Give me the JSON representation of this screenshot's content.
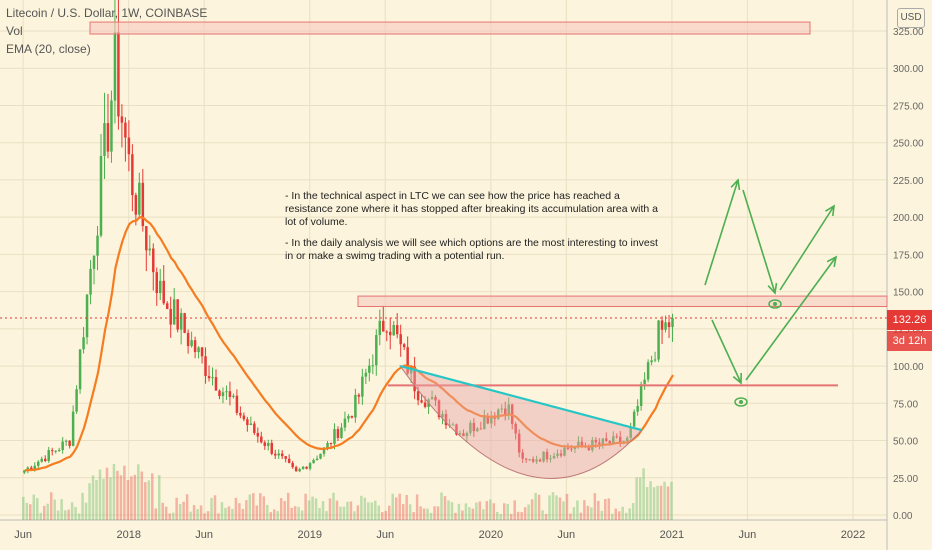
{
  "header": {
    "title": "Litecoin / U.S. Dollar, 1W, COINBASE",
    "indicator_vol": "Vol",
    "indicator_ema": "EMA (20, close)"
  },
  "currency_label": "USD",
  "price_badge": {
    "value": "132.26",
    "countdown": "3d 12h"
  },
  "annotation": {
    "p1": "- In the technical aspect in LTC we can see how the price has reached a resistance zone where it has stopped after breaking its accumulation area with a lot of volume.",
    "p2": "- In the daily analysis we will see which options are the most interesting to invest in or make a swimg trading with a potential run."
  },
  "colors": {
    "background": "#fcf4dc",
    "candle_up": "#4caf50",
    "candle_down": "#e53935",
    "ema": "#f57c20",
    "resistance_zone_fill": "#f6c9bf",
    "resistance_zone_border": "#e57373",
    "trendline": "#26c6c6",
    "arrows": "#4caf50",
    "cup_fill": "#e8a5a8"
  },
  "chart_data": {
    "type": "candlestick",
    "y_axis": {
      "ticks": [
        0.0,
        25.0,
        50.0,
        75.0,
        100.0,
        125.0,
        150.0,
        175.0,
        200.0,
        225.0,
        250.0,
        275.0,
        300.0,
        325.0
      ],
      "labels": [
        "0.00",
        "25.00",
        "50.00",
        "75.00",
        "100.00",
        "125.00",
        "150.00",
        "175.00",
        "200.00",
        "225.00",
        "250.00",
        "275.00",
        "300.00",
        "325.00"
      ],
      "range": [
        0,
        335
      ]
    },
    "x_axis": {
      "labels": [
        "Jun",
        "2018",
        "Jun",
        "2019",
        "Jun",
        "2020",
        "Jun",
        "2021",
        "Jun",
        "2022"
      ],
      "dates": [
        "2017-06",
        "2018-01",
        "2018-06",
        "2019-01",
        "2019-06",
        "2020-01",
        "2020-06",
        "2021-01",
        "2021-06",
        "2022-01"
      ]
    },
    "price_series_keypoints": [
      {
        "date": "2017-06",
        "close": 30
      },
      {
        "date": "2017-09",
        "close": 50
      },
      {
        "date": "2017-12",
        "close": 300
      },
      {
        "date": "2018-01",
        "close": 230
      },
      {
        "date": "2018-03",
        "close": 150
      },
      {
        "date": "2018-06",
        "close": 100
      },
      {
        "date": "2018-09",
        "close": 58
      },
      {
        "date": "2018-12",
        "close": 28
      },
      {
        "date": "2019-02",
        "close": 45
      },
      {
        "date": "2019-04",
        "close": 75
      },
      {
        "date": "2019-06",
        "close": 135
      },
      {
        "date": "2019-08",
        "close": 85
      },
      {
        "date": "2019-11",
        "close": 55
      },
      {
        "date": "2020-02",
        "close": 75
      },
      {
        "date": "2020-03",
        "close": 35
      },
      {
        "date": "2020-06",
        "close": 45
      },
      {
        "date": "2020-10",
        "close": 50
      },
      {
        "date": "2020-12",
        "close": 120
      },
      {
        "date": "2021-01",
        "close": 132
      }
    ],
    "ema": {
      "label": "EMA (20, close)",
      "period": 20
    },
    "last_price": 132.26,
    "annotations": {
      "resistance_zone_top": [
        323,
        331
      ],
      "resistance_zone_current": [
        140,
        147
      ],
      "support_line": 87,
      "trendline": {
        "from": {
          "date": "2019-07",
          "value": 100
        },
        "to": {
          "date": "2020-11",
          "value": 57
        }
      },
      "projection_paths": [
        "up-to-225-then-pullback-to-140-then-up-to-205",
        "down-to-90-then-up-to-175"
      ]
    }
  }
}
